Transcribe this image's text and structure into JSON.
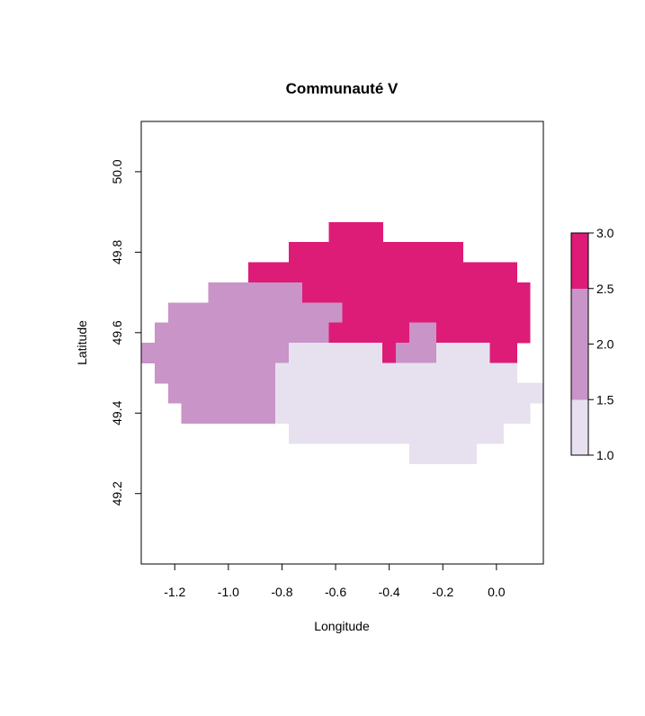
{
  "chart_data": {
    "type": "heatmap",
    "title": "Communauté V",
    "xlabel": "Longitude",
    "ylabel": "Latitude",
    "xlim": [
      -1.325,
      0.175
    ],
    "ylim": [
      49.025,
      50.125
    ],
    "x_ticks": [
      -1.2,
      -1.0,
      -0.8,
      -0.6,
      -0.4,
      -0.2,
      0.0
    ],
    "x_tick_labels": [
      "-1.2",
      "-1.0",
      "-0.8",
      "-0.6",
      "-0.4",
      "-0.2",
      "0.0"
    ],
    "y_ticks": [
      49.2,
      49.4,
      49.6,
      49.8,
      50.0
    ],
    "y_tick_labels": [
      "49.2",
      "49.4",
      "49.6",
      "49.8",
      "50.0"
    ],
    "cell_size": 0.05,
    "legend": {
      "placement": "right",
      "breaks": [
        1.0,
        1.5,
        2.5,
        3.0
      ],
      "colors": [
        "#E7E1EF",
        "#C994C7",
        "#DD1C77"
      ],
      "tick_values": [
        1.0,
        1.5,
        2.0,
        2.5,
        3.0
      ],
      "tick_labels": [
        "1.0",
        "1.5",
        "2.0",
        "2.5",
        "3.0"
      ]
    },
    "grid": {
      "lon_start": -1.325,
      "lat_top": 49.875,
      "rows": [
        {
          "lat": 49.85,
          "runs": [
            {
              "from": -0.625,
              "to": -0.425,
              "value": 3
            }
          ]
        },
        {
          "lat": 49.8,
          "runs": [
            {
              "from": -0.775,
              "to": -0.125,
              "value": 3
            }
          ]
        },
        {
          "lat": 49.75,
          "runs": [
            {
              "from": -0.925,
              "to": 0.075,
              "value": 3
            }
          ]
        },
        {
          "lat": 49.7,
          "runs": [
            {
              "from": -1.075,
              "to": -0.725,
              "value": 2
            },
            {
              "from": -0.725,
              "to": 0.125,
              "value": 3
            }
          ]
        },
        {
          "lat": 49.65,
          "runs": [
            {
              "from": -1.225,
              "to": -0.575,
              "value": 2
            },
            {
              "from": -0.575,
              "to": 0.125,
              "value": 3
            }
          ]
        },
        {
          "lat": 49.6,
          "runs": [
            {
              "from": -1.275,
              "to": -0.625,
              "value": 2
            },
            {
              "from": -0.625,
              "to": -0.325,
              "value": 3
            },
            {
              "from": -0.325,
              "to": -0.225,
              "value": 2
            },
            {
              "from": -0.225,
              "to": 0.125,
              "value": 3
            }
          ]
        },
        {
          "lat": 49.55,
          "runs": [
            {
              "from": -1.325,
              "to": -0.775,
              "value": 2
            },
            {
              "from": -0.775,
              "to": -0.425,
              "value": 1
            },
            {
              "from": -0.425,
              "to": -0.375,
              "value": 3
            },
            {
              "from": -0.375,
              "to": -0.225,
              "value": 2
            },
            {
              "from": -0.225,
              "to": -0.025,
              "value": 1
            },
            {
              "from": -0.025,
              "to": 0.075,
              "value": 3
            }
          ]
        },
        {
          "lat": 49.5,
          "runs": [
            {
              "from": -1.275,
              "to": -0.825,
              "value": 2
            },
            {
              "from": -0.825,
              "to": 0.075,
              "value": 1
            }
          ]
        },
        {
          "lat": 49.45,
          "runs": [
            {
              "from": -1.225,
              "to": -0.825,
              "value": 2
            },
            {
              "from": -0.825,
              "to": 0.175,
              "value": 1
            }
          ]
        },
        {
          "lat": 49.4,
          "runs": [
            {
              "from": -1.175,
              "to": -0.825,
              "value": 2
            },
            {
              "from": -0.825,
              "to": 0.125,
              "value": 1
            }
          ]
        },
        {
          "lat": 49.35,
          "runs": [
            {
              "from": -0.775,
              "to": 0.025,
              "value": 1
            }
          ]
        },
        {
          "lat": 49.3,
          "runs": [
            {
              "from": -0.325,
              "to": -0.075,
              "value": 1
            }
          ]
        }
      ]
    }
  }
}
